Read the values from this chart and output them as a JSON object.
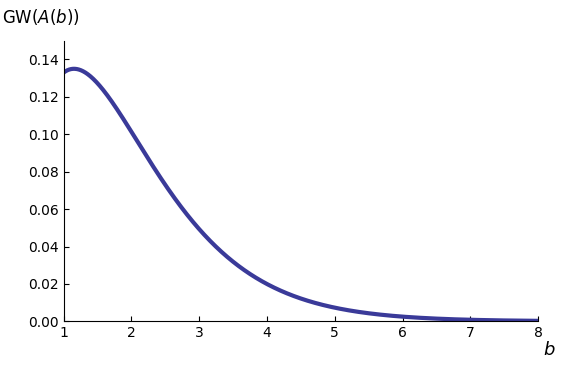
{
  "x_min": 1.0,
  "x_max": 8.0,
  "y_min": 0.0,
  "y_max": 0.15,
  "x_ticks": [
    1,
    2,
    3,
    4,
    5,
    6,
    7,
    8
  ],
  "y_ticks": [
    0.0,
    0.02,
    0.04,
    0.06,
    0.08,
    0.1,
    0.12,
    0.14
  ],
  "xlabel": "b",
  "ylabel": "GW(A(b))",
  "line_color": "#3a3a99",
  "line_width": 3.0,
  "n_points": 2000,
  "background_color": "#ffffff",
  "A_coef": 0.982,
  "alpha": 1.5,
  "beta": 1.5
}
